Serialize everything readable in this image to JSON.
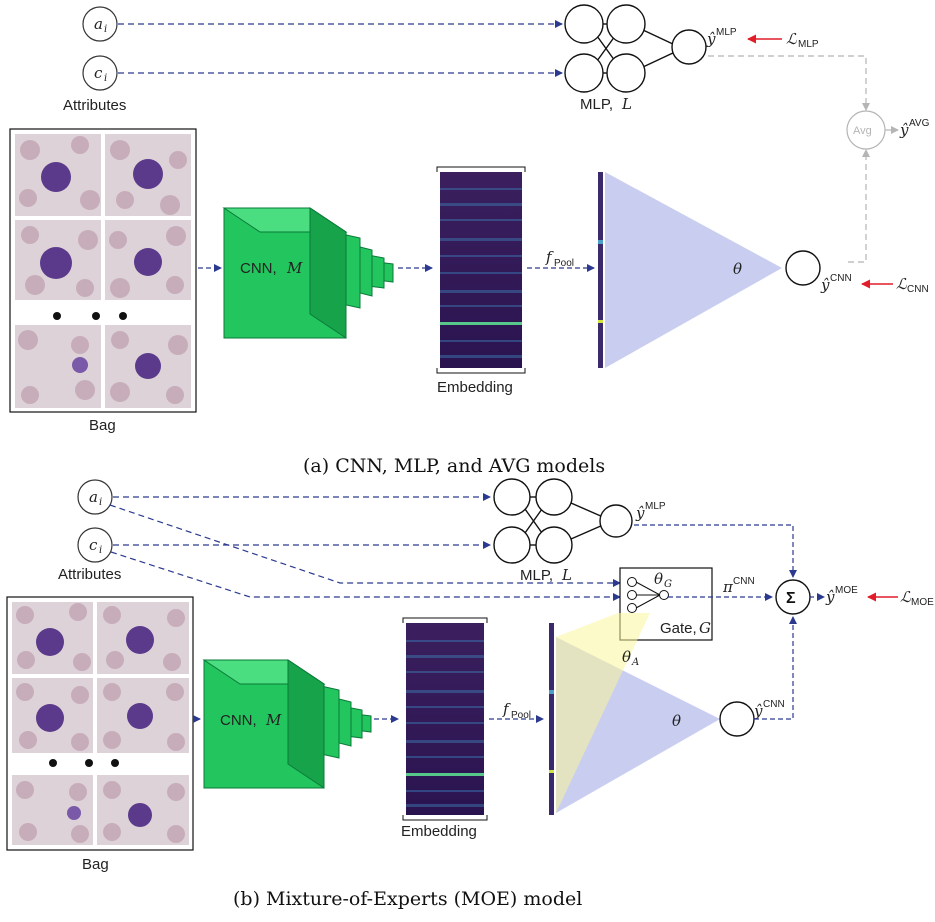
{
  "panel_a": {
    "inputs": [
      "a",
      "c"
    ],
    "attributes_label": "Attributes",
    "mlp_label": "MLP,",
    "mlp_symbol": "L",
    "cnn_label": "CNN,",
    "cnn_symbol": "M",
    "embedding_label": "Embedding",
    "bag_label": "Bag",
    "pool_label": "f",
    "pool_sub": "Pool",
    "theta": "θ",
    "avg_node": "Avg",
    "y_mlp": "ŷ",
    "y_mlp_sup": "MLP",
    "y_cnn": "ŷ",
    "y_cnn_sup": "CNN",
    "y_avg": "ŷ",
    "y_avg_sup": "AVG",
    "loss_mlp": "ℒ",
    "loss_mlp_sub": "MLP",
    "loss_cnn": "ℒ",
    "loss_cnn_sub": "CNN",
    "caption": "(a) CNN, MLP, and AVG models"
  },
  "panel_b": {
    "inputs": [
      "a",
      "c"
    ],
    "attributes_label": "Attributes",
    "mlp_label": "MLP,",
    "mlp_symbol": "L",
    "cnn_label": "CNN,",
    "cnn_symbol": "M",
    "embedding_label": "Embedding",
    "bag_label": "Bag",
    "pool_label": "f",
    "pool_sub": "Pool",
    "theta": "θ",
    "theta_g": "θ",
    "theta_g_sub": "G",
    "theta_a": "θ",
    "theta_a_sub": "A",
    "gate_label": "Gate,",
    "gate_symbol": "G",
    "sum_node": "Σ",
    "pi_cnn": "π",
    "pi_cnn_sup": "CNN",
    "y_mlp": "ŷ",
    "y_mlp_sup": "MLP",
    "y_cnn": "ŷ",
    "y_cnn_sup": "CNN",
    "y_moe": "ŷ",
    "y_moe_sup": "MOE",
    "loss_moe": "ℒ",
    "loss_moe_sub": "MOE",
    "caption": "(b) Mixture-of-Experts (MOE) model"
  },
  "colors": {
    "arrow_blue": "#2b3a8f",
    "cnn_green": "#22c55e",
    "theta_blue": "#c9cdf0",
    "gate_yellow": "#f7f59b",
    "loss_red": "#e11d2a",
    "avg_gray": "#b5b5b5",
    "cell_purple": "#5b3a8c"
  }
}
